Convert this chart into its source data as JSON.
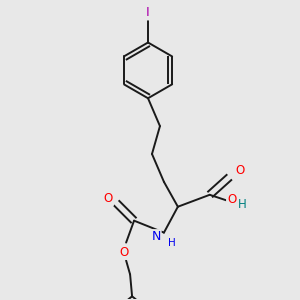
{
  "bg_color": "#e8e8e8",
  "bond_color": "#1a1a1a",
  "atom_colors": {
    "O": "#ff0000",
    "N": "#0000ee",
    "I": "#aa00aa",
    "OH": "#008080",
    "C": "#1a1a1a"
  },
  "line_width": 1.4,
  "font_size": 8.5,
  "fig_size": [
    3.0,
    3.0
  ],
  "dpi": 100
}
